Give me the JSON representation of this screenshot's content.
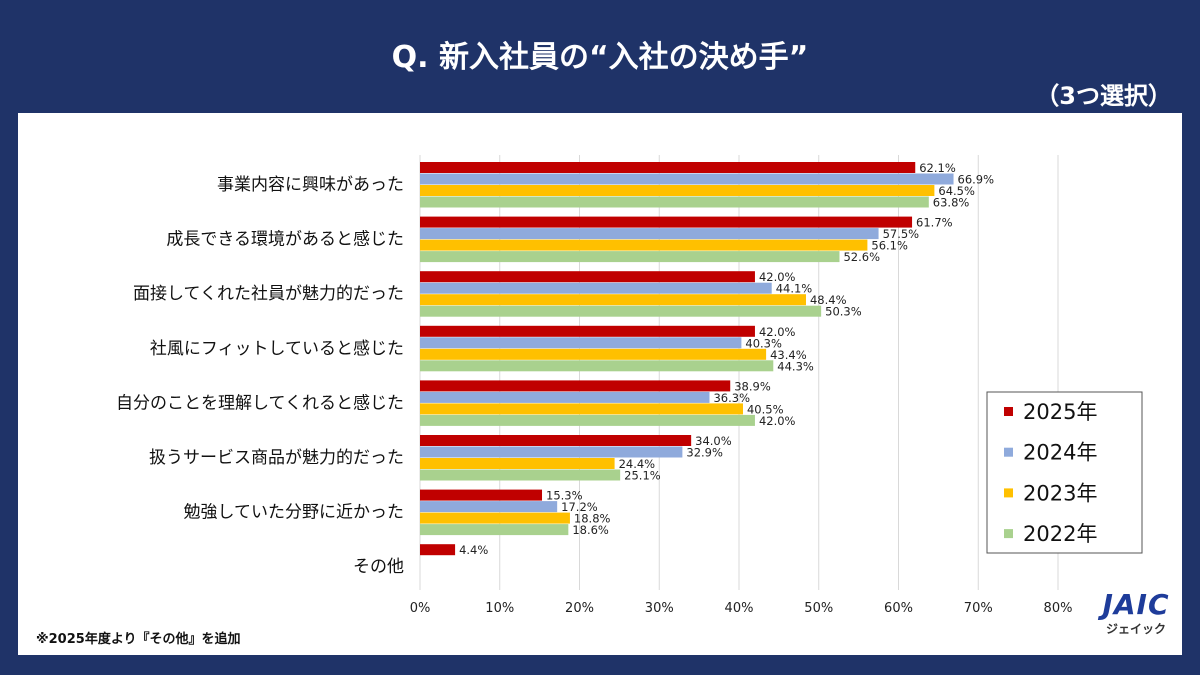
{
  "header": {
    "title": "Q. 新入社員の“入社の決め手”",
    "subtitle": "（3つ選択）"
  },
  "footnote": "※2025年度より『その他』を追加",
  "logo": {
    "mark": "JAIC",
    "kana": "ジェイック"
  },
  "colors": {
    "2025年": "#c00000",
    "2024年": "#8faadc",
    "2023年": "#ffc000",
    "2022年": "#a9d18e",
    "background": "#1f3368"
  },
  "chart_data": {
    "type": "bar",
    "orientation": "horizontal",
    "categories": [
      "事業内容に興味があった",
      "成長できる環境があると感じた",
      "面接してくれた社員が魅力的だった",
      "社風にフィットしていると感じた",
      "自分のことを理解してくれると感じた",
      "扱うサービス商品が魅力的だった",
      "勉強していた分野に近かった",
      "その他"
    ],
    "series": [
      {
        "name": "2025年",
        "values": [
          62.1,
          61.7,
          42.0,
          42.0,
          38.9,
          34.0,
          15.3,
          4.4
        ]
      },
      {
        "name": "2024年",
        "values": [
          66.9,
          57.5,
          44.1,
          40.3,
          36.3,
          32.9,
          17.2,
          null
        ]
      },
      {
        "name": "2023年",
        "values": [
          64.5,
          56.1,
          48.4,
          43.4,
          40.5,
          24.4,
          18.8,
          null
        ]
      },
      {
        "name": "2022年",
        "values": [
          63.8,
          52.6,
          50.3,
          44.3,
          42.0,
          25.1,
          18.6,
          null
        ]
      }
    ],
    "xlim": [
      0,
      80
    ],
    "xticks": [
      "0%",
      "10%",
      "20%",
      "30%",
      "40%",
      "50%",
      "60%",
      "70%",
      "80%"
    ],
    "grid": true,
    "legend": "bottom-right"
  }
}
